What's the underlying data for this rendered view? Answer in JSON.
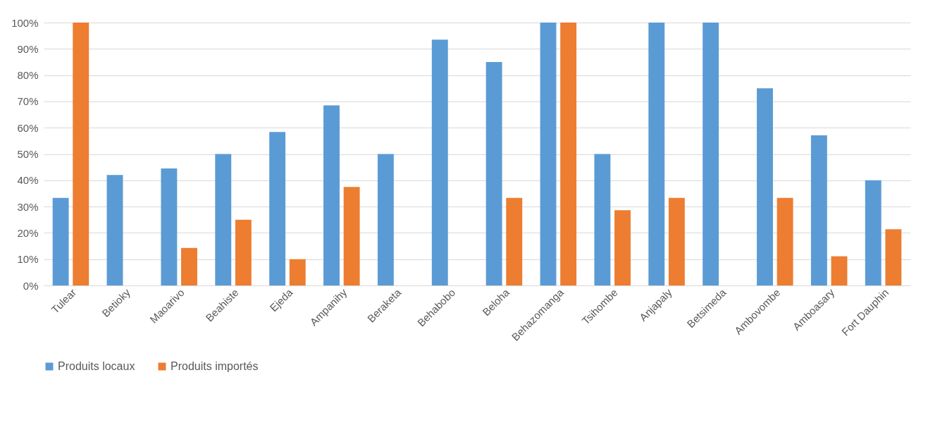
{
  "chart_data": {
    "type": "bar",
    "categories": [
      "Tulear",
      "Betioky",
      "Maoarivo",
      "Beahiste",
      "Ejeda",
      "Ampanihy",
      "Beraketa",
      "Behabobo",
      "Beloha",
      "Behazomanga",
      "Tsihombe",
      "Anjapaly",
      "Betsimeda",
      "Ambovombe",
      "Amboasary",
      "Fort Dauphin"
    ],
    "series": [
      {
        "name": "Produits locaux",
        "color": "#5b9bd5",
        "values": [
          33.3,
          42,
          44.5,
          50,
          58.4,
          68.5,
          50,
          93.5,
          85,
          100,
          50,
          100,
          100,
          75,
          57.1,
          40
        ]
      },
      {
        "name": "Produits importés",
        "color": "#ed7d31",
        "values": [
          100,
          0,
          14.3,
          25,
          10,
          37.5,
          0,
          0,
          33.3,
          100,
          28.6,
          33.3,
          0,
          33.3,
          11.1,
          21.4
        ]
      }
    ],
    "ylim": [
      0,
      100
    ],
    "yticks": [
      {
        "value": 0,
        "label": "0%"
      },
      {
        "value": 10,
        "label": "10%"
      },
      {
        "value": 20,
        "label": "20%"
      },
      {
        "value": 30,
        "label": "30%"
      },
      {
        "value": 40,
        "label": "40%"
      },
      {
        "value": 50,
        "label": "50%"
      },
      {
        "value": 60,
        "label": "60%"
      },
      {
        "value": 70,
        "label": "70%"
      },
      {
        "value": 80,
        "label": "80%"
      },
      {
        "value": 90,
        "label": "90%"
      },
      {
        "value": 100,
        "label": "100%"
      }
    ],
    "grid": "y",
    "legend": "bottom"
  }
}
